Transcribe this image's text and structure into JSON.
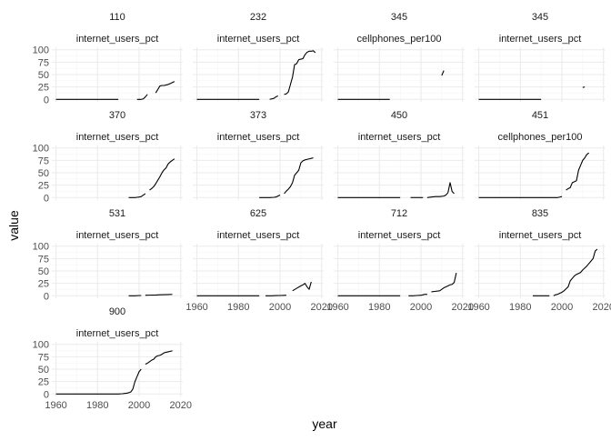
{
  "chart_data": {
    "type": "line",
    "layout": "facet-wrap",
    "xlabel": "year",
    "ylabel": "value",
    "xlim": [
      1958,
      2021
    ],
    "ylim": [
      -5,
      105
    ],
    "x_ticks": [
      1960,
      1980,
      2000,
      2020
    ],
    "y_ticks": [
      0,
      25,
      50,
      75,
      100
    ],
    "grid": true,
    "panels": [
      {
        "title": "110",
        "subtitle": "internet_users_pct",
        "segments": [
          [
            [
              1960,
              0
            ],
            [
              1990,
              0
            ]
          ],
          [
            [
              1999,
              0
            ],
            [
              2001,
              0
            ],
            [
              2002,
              1
            ],
            [
              2003,
              5
            ],
            [
              2004,
              10
            ]
          ],
          [
            [
              2008,
              13
            ],
            [
              2009,
              20
            ],
            [
              2010,
              27
            ],
            [
              2011,
              28
            ],
            [
              2012,
              28
            ],
            [
              2013,
              29
            ],
            [
              2014,
              30
            ],
            [
              2015,
              32
            ],
            [
              2016,
              34
            ],
            [
              2017,
              36
            ]
          ]
        ]
      },
      {
        "title": "232",
        "subtitle": "internet_users_pct",
        "segments": [
          [
            [
              1960,
              0
            ],
            [
              1990,
              0
            ]
          ],
          [
            [
              1995,
              0
            ],
            [
              1997,
              2
            ],
            [
              1998,
              5
            ],
            [
              1999,
              7
            ]
          ],
          [
            [
              2002,
              10
            ],
            [
              2003,
              11
            ],
            [
              2004,
              15
            ],
            [
              2005,
              30
            ],
            [
              2006,
              45
            ],
            [
              2007,
              70
            ],
            [
              2008,
              72
            ],
            [
              2009,
              80
            ],
            [
              2010,
              81
            ],
            [
              2011,
              82
            ],
            [
              2012,
              90
            ],
            [
              2013,
              95
            ],
            [
              2014,
              97
            ],
            [
              2015,
              97
            ],
            [
              2016,
              98
            ],
            [
              2017,
              94
            ]
          ]
        ]
      },
      {
        "title": "345",
        "subtitle": "cellphones_per100",
        "segments": [
          [
            [
              1960,
              0
            ],
            [
              1985,
              0
            ]
          ],
          [
            [
              2010,
              48
            ],
            [
              2011,
              58
            ]
          ]
        ]
      },
      {
        "title": "345",
        "subtitle": "internet_users_pct",
        "segments": [
          [
            [
              1960,
              0
            ],
            [
              1990,
              0
            ]
          ],
          [
            [
              2010,
              24
            ],
            [
              2011,
              25
            ]
          ]
        ]
      },
      {
        "title": "370",
        "subtitle": "internet_users_pct",
        "segments": [
          [
            [
              1995,
              0
            ],
            [
              1998,
              0
            ],
            [
              1999,
              0.5
            ],
            [
              2000,
              1
            ],
            [
              2001,
              2
            ],
            [
              2002,
              5
            ],
            [
              2003,
              8
            ]
          ],
          [
            [
              2005,
              15
            ],
            [
              2006,
              18
            ],
            [
              2007,
              22
            ],
            [
              2008,
              28
            ],
            [
              2009,
              35
            ],
            [
              2010,
              42
            ],
            [
              2011,
              50
            ],
            [
              2012,
              56
            ],
            [
              2013,
              60
            ],
            [
              2014,
              68
            ],
            [
              2015,
              72
            ],
            [
              2016,
              75
            ],
            [
              2017,
              78
            ]
          ]
        ]
      },
      {
        "title": "373",
        "subtitle": "internet_users_pct",
        "segments": [
          [
            [
              1990,
              0
            ],
            [
              1995,
              0
            ],
            [
              1997,
              0.5
            ],
            [
              1998,
              1
            ],
            [
              1999,
              3
            ],
            [
              2000,
              5
            ]
          ],
          [
            [
              2002,
              8
            ],
            [
              2003,
              13
            ],
            [
              2004,
              17
            ],
            [
              2005,
              22
            ],
            [
              2006,
              30
            ],
            [
              2007,
              45
            ],
            [
              2008,
              50
            ],
            [
              2009,
              55
            ],
            [
              2010,
              70
            ],
            [
              2011,
              74
            ],
            [
              2012,
              76
            ],
            [
              2013,
              77
            ],
            [
              2014,
              78
            ],
            [
              2015,
              79
            ],
            [
              2016,
              80
            ]
          ]
        ]
      },
      {
        "title": "450",
        "subtitle": "internet_users_pct",
        "segments": [
          [
            [
              1960,
              0
            ],
            [
              1990,
              0
            ]
          ],
          [
            [
              1995,
              0
            ],
            [
              1998,
              0
            ],
            [
              2000,
              0
            ],
            [
              2001,
              0
            ]
          ],
          [
            [
              2003,
              0
            ],
            [
              2005,
              1
            ],
            [
              2007,
              2
            ],
            [
              2009,
              2
            ],
            [
              2011,
              3
            ],
            [
              2012,
              5
            ],
            [
              2013,
              10
            ],
            [
              2014,
              30
            ],
            [
              2015,
              12
            ],
            [
              2016,
              8
            ]
          ]
        ]
      },
      {
        "title": "451",
        "subtitle": "cellphones_per100",
        "segments": [
          [
            [
              1960,
              0
            ],
            [
              1995,
              0
            ],
            [
              1998,
              0
            ],
            [
              1999,
              1
            ],
            [
              2000,
              2
            ]
          ],
          [
            [
              2002,
              15
            ],
            [
              2003,
              18
            ],
            [
              2004,
              20
            ],
            [
              2005,
              30
            ],
            [
              2006,
              32
            ],
            [
              2007,
              34
            ],
            [
              2008,
              55
            ],
            [
              2009,
              65
            ],
            [
              2010,
              75
            ],
            [
              2011,
              80
            ],
            [
              2012,
              87
            ],
            [
              2013,
              90
            ]
          ]
        ]
      },
      {
        "title": "531",
        "subtitle": "internet_users_pct",
        "segments": [
          [
            [
              1995,
              0
            ],
            [
              1998,
              0
            ],
            [
              2000,
              0.5
            ],
            [
              2001,
              0.5
            ]
          ],
          [
            [
              2003,
              1
            ],
            [
              2005,
              1.2
            ],
            [
              2008,
              1.5
            ],
            [
              2010,
              2
            ],
            [
              2012,
              2.2
            ],
            [
              2014,
              2.5
            ],
            [
              2016,
              2.8
            ]
          ]
        ]
      },
      {
        "title": "625",
        "subtitle": "internet_users_pct",
        "segments": [
          [
            [
              1960,
              0
            ],
            [
              1990,
              0
            ]
          ],
          [
            [
              1993,
              0
            ],
            [
              1996,
              0
            ],
            [
              1998,
              0.3
            ],
            [
              2000,
              0.5
            ],
            [
              2002,
              0.8
            ],
            [
              2003,
              1
            ]
          ],
          [
            [
              2006,
              10
            ],
            [
              2008,
              15
            ],
            [
              2010,
              20
            ],
            [
              2011,
              22
            ],
            [
              2012,
              25
            ],
            [
              2013,
              18
            ],
            [
              2014,
              13
            ],
            [
              2015,
              28
            ]
          ]
        ]
      },
      {
        "title": "712",
        "subtitle": "internet_users_pct",
        "segments": [
          [
            [
              1960,
              0
            ],
            [
              1990,
              0
            ]
          ],
          [
            [
              1994,
              0
            ],
            [
              1996,
              0
            ],
            [
              1998,
              0.5
            ],
            [
              2000,
              1
            ],
            [
              2001,
              2
            ],
            [
              2002,
              3
            ],
            [
              2003,
              3
            ]
          ],
          [
            [
              2005,
              8
            ],
            [
              2007,
              9
            ],
            [
              2009,
              10
            ],
            [
              2010,
              13
            ],
            [
              2011,
              16
            ],
            [
              2012,
              18
            ],
            [
              2013,
              20
            ],
            [
              2014,
              22
            ],
            [
              2015,
              23
            ],
            [
              2016,
              27
            ],
            [
              2017,
              46
            ]
          ]
        ]
      },
      {
        "title": "835",
        "subtitle": "internet_users_pct",
        "segments": [
          [
            [
              1986,
              0
            ],
            [
              1990,
              0
            ],
            [
              1992,
              0
            ],
            [
              1994,
              0
            ]
          ],
          [
            [
              1996,
              0
            ],
            [
              1997,
              2
            ],
            [
              1998,
              3
            ],
            [
              1999,
              5
            ],
            [
              2000,
              7
            ],
            [
              2001,
              10
            ],
            [
              2002,
              14
            ],
            [
              2003,
              18
            ],
            [
              2004,
              30
            ],
            [
              2005,
              35
            ],
            [
              2006,
              40
            ],
            [
              2007,
              43
            ],
            [
              2008,
              45
            ],
            [
              2009,
              47
            ],
            [
              2010,
              52
            ],
            [
              2011,
              56
            ],
            [
              2012,
              60
            ],
            [
              2013,
              65
            ],
            [
              2014,
              70
            ],
            [
              2015,
              75
            ],
            [
              2016,
              90
            ],
            [
              2017,
              94
            ]
          ]
        ]
      },
      {
        "title": "900",
        "subtitle": "internet_users_pct",
        "segments": [
          [
            [
              1960,
              0
            ],
            [
              1990,
              0
            ],
            [
              1992,
              0.5
            ],
            [
              1993,
              1
            ],
            [
              1994,
              1.5
            ],
            [
              1995,
              2.5
            ],
            [
              1996,
              4
            ],
            [
              1997,
              10
            ],
            [
              1998,
              25
            ],
            [
              1999,
              35
            ],
            [
              2000,
              45
            ],
            [
              2001,
              50
            ]
          ],
          [
            [
              2003,
              60
            ],
            [
              2004,
              62
            ],
            [
              2005,
              65
            ],
            [
              2006,
              68
            ],
            [
              2007,
              70
            ],
            [
              2008,
              75
            ],
            [
              2009,
              77
            ],
            [
              2010,
              78
            ],
            [
              2011,
              80
            ],
            [
              2012,
              83
            ],
            [
              2013,
              84
            ],
            [
              2014,
              85
            ],
            [
              2015,
              86
            ],
            [
              2016,
              87
            ]
          ]
        ]
      }
    ]
  }
}
